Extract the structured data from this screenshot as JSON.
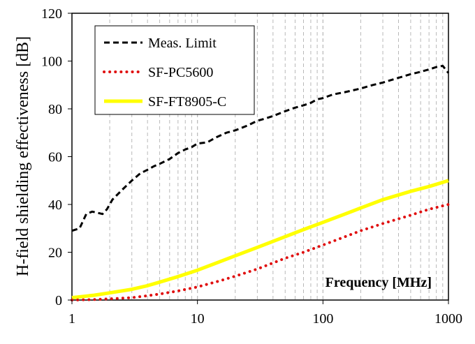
{
  "chart_data": {
    "type": "line",
    "title": "",
    "xlabel": "Frequency [MHz]",
    "ylabel": "H-field shielding effectiveness [dB]",
    "x_scale": "log",
    "xlim": [
      1,
      1000
    ],
    "ylim": [
      0,
      120
    ],
    "x_ticks": [
      "1",
      "10",
      "100",
      "1000"
    ],
    "y_ticks": [
      "0",
      "20",
      "40",
      "60",
      "80",
      "100",
      "120"
    ],
    "grid": "vertical minor/major dashed (log decades), no horizontal",
    "legend_position": "top-left",
    "series": [
      {
        "name": "Meas. Limit",
        "color": "#000000",
        "style": "dashed",
        "x": [
          1,
          1.15,
          1.3,
          1.45,
          1.6,
          1.75,
          1.9,
          2.1,
          2.5,
          3,
          3.5,
          4,
          4.5,
          5,
          6,
          7,
          8,
          9,
          10,
          12,
          14,
          17,
          20,
          25,
          30,
          35,
          40,
          50,
          60,
          70,
          80,
          90,
          100,
          120,
          150,
          200,
          250,
          300,
          400,
          500,
          600,
          700,
          800,
          900,
          1000
        ],
        "y": [
          29,
          30,
          36,
          37,
          36.5,
          36,
          38,
          42,
          46,
          50,
          53,
          54.5,
          56,
          57,
          59,
          61.5,
          63,
          64,
          65.5,
          66,
          68,
          70,
          71,
          73,
          75,
          76,
          77,
          79,
          80.5,
          81.5,
          82.5,
          84,
          84.5,
          86,
          87,
          88.5,
          90,
          91,
          93,
          94.5,
          95.5,
          96.5,
          97.5,
          98,
          95
        ]
      },
      {
        "name": "SF-PC5600",
        "color": "#e01010",
        "style": "dotted",
        "x": [
          1,
          1.5,
          2,
          3,
          4,
          5,
          7,
          10,
          15,
          20,
          30,
          50,
          70,
          100,
          150,
          200,
          300,
          500,
          700,
          1000
        ],
        "y": [
          0,
          0.2,
          0.5,
          1,
          1.8,
          2.5,
          3.8,
          5.5,
          8,
          10,
          13,
          17.5,
          20,
          23,
          26.5,
          29,
          32,
          35.5,
          38,
          40
        ]
      },
      {
        "name": "SF-FT8905-C",
        "color": "#ffff00",
        "style": "solid",
        "x": [
          1,
          1.5,
          2,
          3,
          4,
          5,
          7,
          10,
          15,
          20,
          30,
          50,
          70,
          100,
          150,
          200,
          300,
          500,
          700,
          1000
        ],
        "y": [
          1,
          2,
          3,
          4.5,
          6,
          7.5,
          9.8,
          12.5,
          16,
          18.5,
          22,
          26.5,
          29.5,
          32.5,
          36,
          38.5,
          42,
          45.5,
          47.5,
          50
        ]
      }
    ]
  }
}
